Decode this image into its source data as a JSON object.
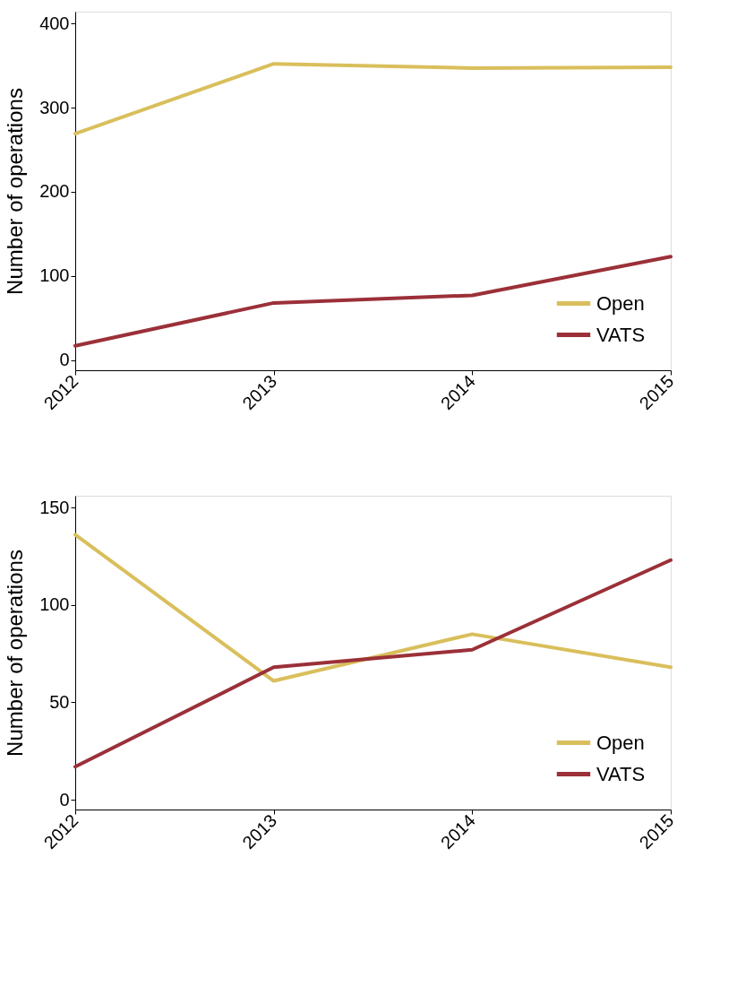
{
  "chart_data": [
    {
      "type": "line",
      "ylabel": "Number of operations",
      "categories": [
        "2012",
        "2013",
        "2014",
        "2015"
      ],
      "ylim": [
        -12,
        414
      ],
      "yticks": [
        0,
        100,
        200,
        300,
        400
      ],
      "grid": false,
      "legend": "bottom right",
      "line_style": "solid",
      "marker": "none",
      "series": [
        {
          "name": "Open",
          "color": "#d9bf5c",
          "values": [
            269,
            352,
            347,
            348
          ]
        },
        {
          "name": "VATS",
          "color": "#9b3038",
          "values": [
            17,
            68,
            77,
            123
          ]
        }
      ]
    },
    {
      "type": "line",
      "ylabel": "Number of operations",
      "categories": [
        "2012",
        "2013",
        "2014",
        "2015"
      ],
      "ylim": [
        -5,
        156
      ],
      "yticks": [
        0,
        50,
        100,
        150
      ],
      "grid": false,
      "legend": "bottom right",
      "line_style": "solid",
      "marker": "none",
      "series": [
        {
          "name": "Open",
          "color": "#d9bf5c",
          "values": [
            136,
            61,
            85,
            68
          ]
        },
        {
          "name": "VATS",
          "color": "#9b3038",
          "values": [
            17,
            68,
            77,
            123
          ]
        }
      ]
    }
  ]
}
